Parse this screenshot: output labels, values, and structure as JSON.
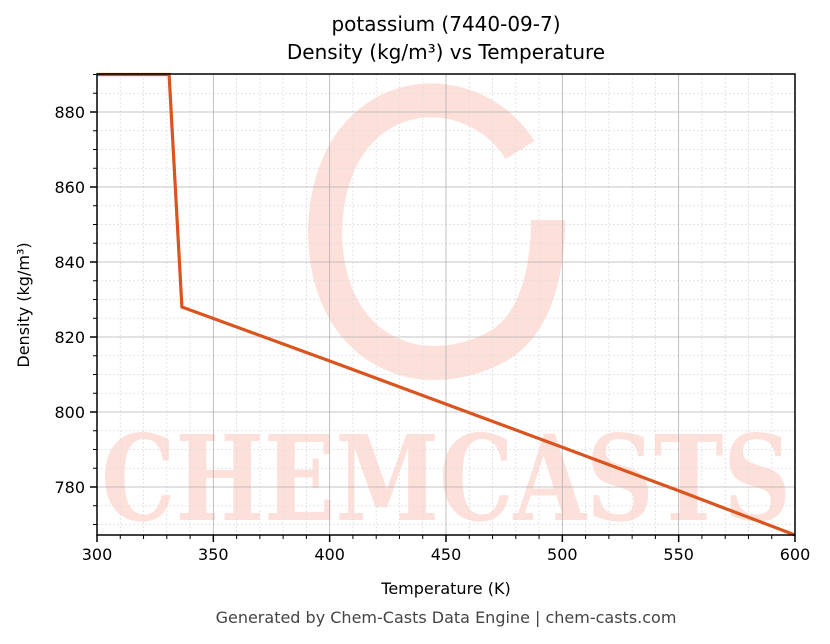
{
  "title_line1": "potassium (7440-09-7)",
  "title_line2": "Density (kg/m³) vs Temperature",
  "xlabel": "Temperature (K)",
  "ylabel": "Density (kg/m³)",
  "footer": "Generated by Chem-Casts Data Engine | chem-casts.com",
  "watermark": "CHEMCASTS",
  "colors": {
    "line": "#d9541e",
    "watermark": "#fde0da",
    "major_grid": "#b0b0b0",
    "minor_grid": "#dddddd"
  },
  "x_ticks": [
    "300",
    "350",
    "400",
    "450",
    "500",
    "550",
    "600"
  ],
  "y_ticks": [
    "780",
    "800",
    "820",
    "840",
    "860",
    "880"
  ],
  "chart_data": {
    "type": "line",
    "title": "potassium (7440-09-7) Density (kg/m³) vs Temperature",
    "xlabel": "Temperature (K)",
    "ylabel": "Density (kg/m³)",
    "xlim": [
      300,
      600
    ],
    "ylim": [
      767,
      890
    ],
    "grid": true,
    "series": [
      {
        "name": "Density",
        "x": [
          300,
          331,
          336.5,
          400,
          450,
          500,
          550,
          600
        ],
        "y": [
          890,
          890,
          828,
          813.6,
          802.1,
          790.6,
          779.0,
          767.2
        ]
      }
    ]
  }
}
